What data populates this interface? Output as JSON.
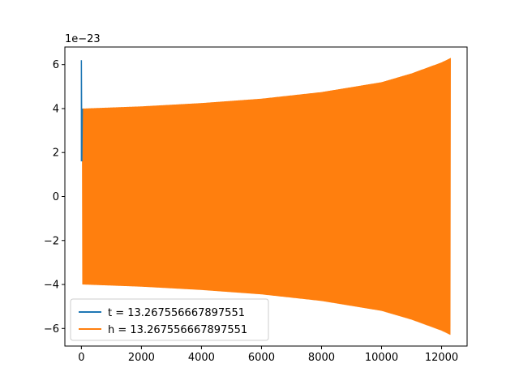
{
  "chart_data": {
    "type": "line",
    "title": "",
    "xlabel": "",
    "ylabel": "",
    "y_scale_label": "1e−23",
    "xlim": [
      -550,
      12850
    ],
    "ylim": [
      -6.8,
      6.8
    ],
    "x_ticks": [
      0,
      2000,
      4000,
      6000,
      8000,
      10000,
      12000
    ],
    "x_tick_labels": [
      "0",
      "2000",
      "4000",
      "6000",
      "8000",
      "10000",
      "12000"
    ],
    "y_ticks": [
      -6,
      -4,
      -2,
      0,
      2,
      4,
      6
    ],
    "y_tick_labels": [
      "−6",
      "−4",
      "−2",
      "0",
      "2",
      "4",
      "6"
    ],
    "grid": false,
    "legend_position": "lower-left",
    "series": [
      {
        "name": "t = 13.267556667897551",
        "color": "#1f77b4",
        "x_range": [
          0,
          12300
        ],
        "envelope": [
          {
            "x": 0,
            "amp": 6.2
          },
          {
            "x": 40,
            "amp": 4.0
          }
        ],
        "note_level": 1.6
      },
      {
        "name": "h = 13.267556667897551",
        "color": "#ff7f0e",
        "x_range": [
          30,
          12300
        ],
        "envelope": [
          {
            "x": 30,
            "amp": 4.0
          },
          {
            "x": 2000,
            "amp": 4.1
          },
          {
            "x": 4000,
            "amp": 4.25
          },
          {
            "x": 6000,
            "amp": 4.45
          },
          {
            "x": 8000,
            "amp": 4.75
          },
          {
            "x": 10000,
            "amp": 5.2
          },
          {
            "x": 11000,
            "amp": 5.6
          },
          {
            "x": 12000,
            "amp": 6.1
          },
          {
            "x": 12300,
            "amp": 6.3
          }
        ]
      }
    ]
  }
}
